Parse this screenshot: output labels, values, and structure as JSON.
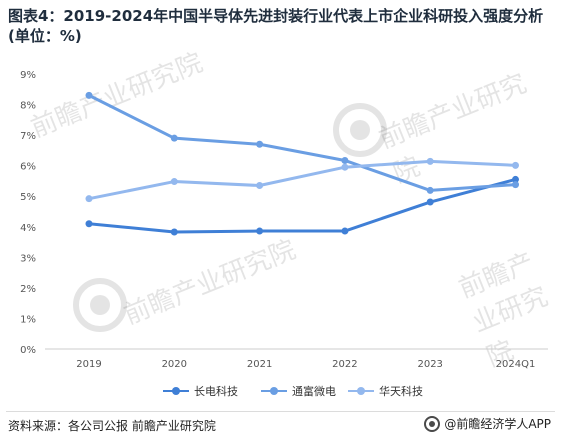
{
  "title": "图表4：2019-2024年中国半导体先进封装行业代表上市企业科研投入强度分析(单位：%)",
  "source_text": "资料来源：各公司公报 前瞻产业研究院",
  "brand_text": "@前瞻经济学人APP",
  "watermark_text": "前瞻产业研究院",
  "colors": {
    "axis": "#cccccc",
    "tick": "#555555",
    "series": [
      "#3f7fd6",
      "#6a9ee3",
      "#93b8ee"
    ]
  },
  "chart_data": {
    "type": "line",
    "title": "图表4：2019-2024年中国半导体先进封装行业代表上市企业科研投入强度分析(单位：%)",
    "xlabel": "",
    "ylabel": "",
    "categories": [
      "2019",
      "2020",
      "2021",
      "2022",
      "2023",
      "2024Q1"
    ],
    "ylim": [
      0,
      9
    ],
    "yticks": [
      "0%",
      "1%",
      "2%",
      "3%",
      "4%",
      "5%",
      "6%",
      "7%",
      "8%",
      "9%"
    ],
    "grid": false,
    "legend_position": "bottom",
    "series": [
      {
        "name": "长电科技",
        "values": [
          4.1,
          3.83,
          3.86,
          3.86,
          4.81,
          5.55
        ]
      },
      {
        "name": "通富微电",
        "values": [
          8.3,
          6.9,
          6.7,
          6.17,
          5.19,
          5.38
        ]
      },
      {
        "name": "华天科技",
        "values": [
          4.92,
          5.48,
          5.35,
          5.95,
          6.14,
          6.01
        ]
      }
    ]
  }
}
